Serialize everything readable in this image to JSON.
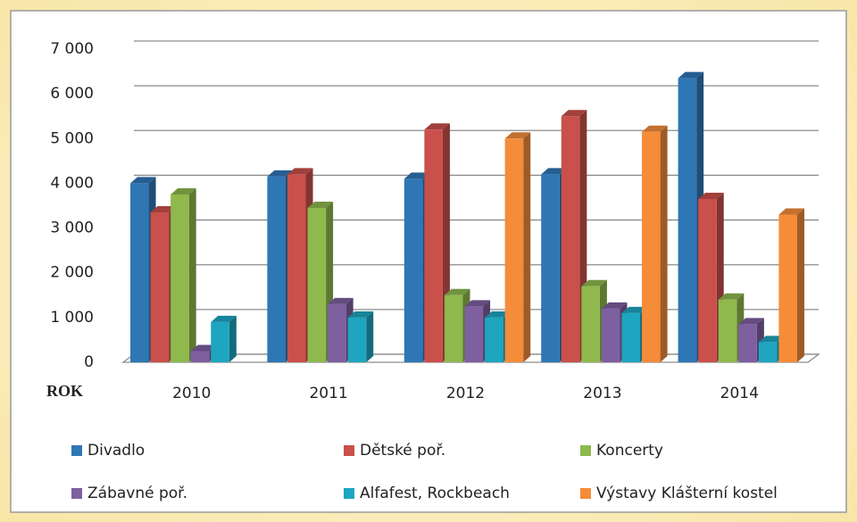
{
  "chart_data": {
    "type": "bar3d",
    "x_label": "ROK",
    "categories": [
      "2010",
      "2011",
      "2012",
      "2013",
      "2014"
    ],
    "series": [
      {
        "name": "Divadlo",
        "color": "#2f76b5",
        "values": [
          4000,
          4150,
          4100,
          4200,
          6350
        ]
      },
      {
        "name": "Dětské poř.",
        "color": "#c9504b",
        "values": [
          3350,
          4200,
          5200,
          5500,
          3650
        ]
      },
      {
        "name": "Koncerty",
        "color": "#8fb84d",
        "values": [
          3750,
          3450,
          1500,
          1700,
          1400
        ]
      },
      {
        "name": "Zábavné poř.",
        "color": "#7e5fa0",
        "values": [
          250,
          1300,
          1250,
          1200,
          850
        ]
      },
      {
        "name": "Alfafest, Rockbeach",
        "color": "#1ea5bf",
        "values": [
          900,
          1000,
          1000,
          1100,
          450
        ]
      },
      {
        "name": "Výstavy Klášterní kostel",
        "color": "#f58c3a",
        "values": [
          null,
          null,
          5000,
          5150,
          3300
        ]
      }
    ],
    "ylim": [
      0,
      7000
    ],
    "yticks": [
      0,
      {
        "value": 1000,
        "label": "1 000"
      },
      {
        "value": 2000,
        "label": "2 000"
      },
      {
        "value": 3000,
        "label": "3 000"
      },
      {
        "value": 4000,
        "label": "4 000"
      },
      {
        "value": 5000,
        "label": "5 000"
      },
      {
        "value": 6000,
        "label": "6 000"
      },
      {
        "value": 7000,
        "label": "7 000"
      }
    ],
    "grid": true
  }
}
